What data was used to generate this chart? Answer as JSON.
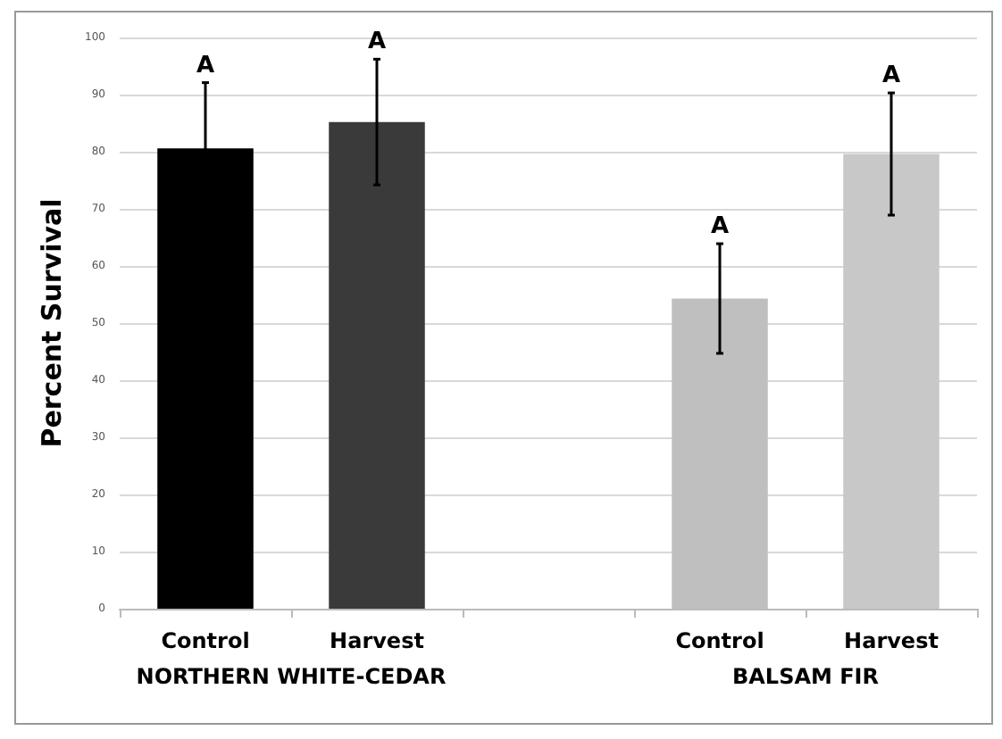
{
  "chart_data": {
    "type": "bar",
    "ylabel": "Percent Survival",
    "categories": [
      "Control",
      "Harvest",
      null,
      "Control",
      "Harvest"
    ],
    "values": [
      80.6,
      85.2,
      null,
      54.3,
      79.6
    ],
    "colors": [
      "#000000",
      "#3a3a3a",
      "#ffffff",
      "#bfbfbf",
      "#c8c8c8"
    ],
    "errors": [
      11.5,
      11,
      null,
      9.6,
      10.7
    ],
    "value_labels": [
      "A",
      "A",
      null,
      "A",
      "A"
    ],
    "annotations": [
      "NORTHERN WHITE-CEDAR",
      "BALSAM FIR"
    ],
    "ylim": [
      0,
      100
    ],
    "yticks": [
      0,
      10,
      20,
      30,
      40,
      50,
      60,
      70,
      80,
      90,
      100
    ],
    "grid": "y"
  }
}
